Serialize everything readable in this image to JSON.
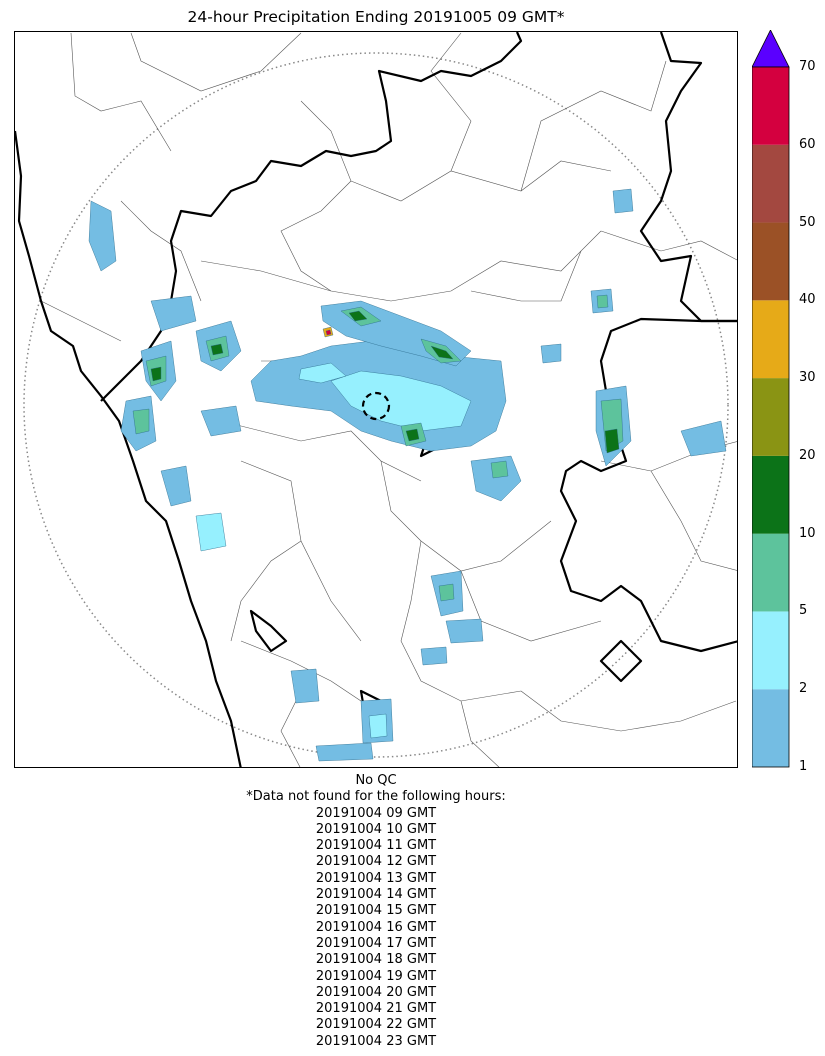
{
  "title": "24-hour Precipitation Ending 20191005 09 GMT*",
  "colorbar": {
    "ticks": [
      "1",
      "2",
      "5",
      "10",
      "20",
      "30",
      "40",
      "50",
      "60",
      "70"
    ],
    "colors": [
      "#74bde3",
      "#96f0fe",
      "#5dc39c",
      "#0c7318",
      "#8a9414",
      "#e6aa18",
      "#9b5126",
      "#a34840",
      "#d4003f"
    ],
    "extend_color": "#5a00ff"
  },
  "footer": {
    "qc": "No QC",
    "missing_header": "*Data not found for the following hours:",
    "missing_hours": [
      "20191004 09 GMT",
      "20191004 10 GMT",
      "20191004 11 GMT",
      "20191004 12 GMT",
      "20191004 13 GMT",
      "20191004 14 GMT",
      "20191004 15 GMT",
      "20191004 16 GMT",
      "20191004 17 GMT",
      "20191004 18 GMT",
      "20191004 19 GMT",
      "20191004 20 GMT",
      "20191004 21 GMT",
      "20191004 22 GMT",
      "20191004 23 GMT"
    ]
  }
}
